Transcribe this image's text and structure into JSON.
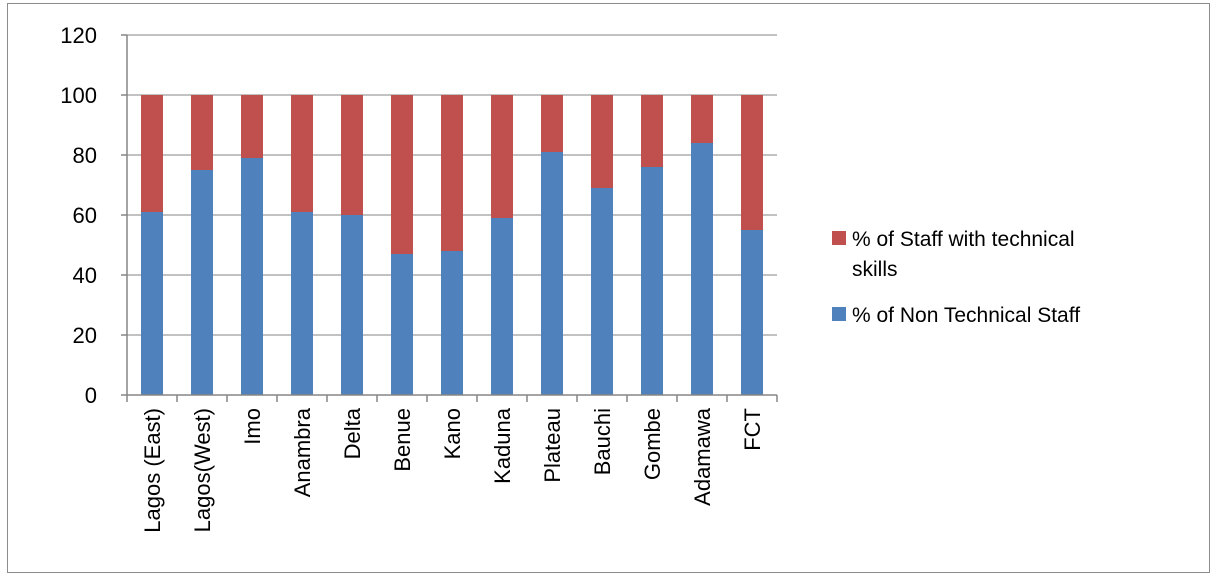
{
  "chart_data": {
    "type": "bar",
    "stacked": true,
    "categories": [
      "Lagos (East)",
      "Lagos(West)",
      "Imo",
      "Anambra",
      "Delta",
      "Benue",
      "Kano",
      "Kaduna",
      "Plateau",
      "Bauchi",
      "Gombe",
      "Adamawa",
      "FCT"
    ],
    "series": [
      {
        "name": "% of Non Technical Staff",
        "color": "#4f81bd",
        "values": [
          61,
          75,
          79,
          61,
          60,
          47,
          48,
          59,
          81,
          69,
          76,
          84,
          55
        ]
      },
      {
        "name": "% of Staff with technical skills",
        "color": "#c0504d",
        "values": [
          39,
          25,
          21,
          39,
          40,
          53,
          52,
          41,
          19,
          31,
          24,
          16,
          45
        ]
      }
    ],
    "y_ticks": [
      "0",
      "20",
      "40",
      "60",
      "80",
      "100",
      "120"
    ],
    "ylim": [
      0,
      120
    ],
    "title": "",
    "xlabel": "",
    "ylabel": "",
    "grid": true,
    "legend_position": "right",
    "legend": [
      {
        "label_lines": [
          "% of Staff with technical",
          "skills"
        ],
        "color": "#c0504d"
      },
      {
        "label_lines": [
          "% of Non Technical Staff"
        ],
        "color": "#4f81bd"
      }
    ]
  }
}
